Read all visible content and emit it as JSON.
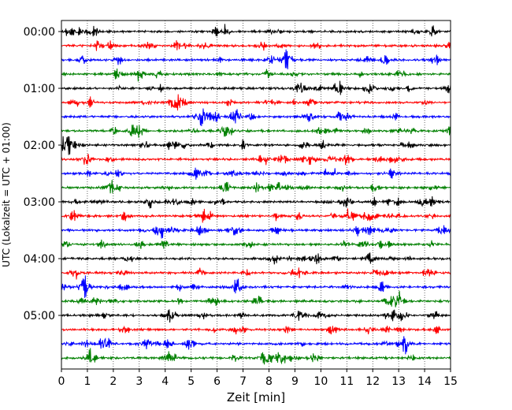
{
  "chart_data": {
    "type": "line",
    "title": "",
    "xlabel": "Zeit  [min]",
    "ylabel": "UTC (Lokalzeit = UTC + 01:00)",
    "xlim": [
      0,
      15
    ],
    "x_ticks": [
      "0",
      "1",
      "2",
      "3",
      "4",
      "5",
      "6",
      "7",
      "8",
      "9",
      "10",
      "11",
      "12",
      "13",
      "14",
      "15"
    ],
    "y_tick_labels": [
      "00:00",
      "01:00",
      "02:00",
      "03:00",
      "04:00",
      "05:00"
    ],
    "grid": "vertical dotted at each minute",
    "trace_interval_minutes": 15,
    "trace_start_times": [
      "00:00",
      "00:15",
      "00:30",
      "00:45",
      "01:00",
      "01:15",
      "01:30",
      "01:45",
      "02:00",
      "02:15",
      "02:30",
      "02:45",
      "03:00",
      "03:15",
      "03:30",
      "03:45",
      "04:00",
      "04:15",
      "04:30",
      "04:45",
      "05:00",
      "05:15",
      "05:30",
      "05:45"
    ],
    "trace_color_cycle": [
      "#000000",
      "#ff0000",
      "#0000ff",
      "#008000"
    ]
  }
}
